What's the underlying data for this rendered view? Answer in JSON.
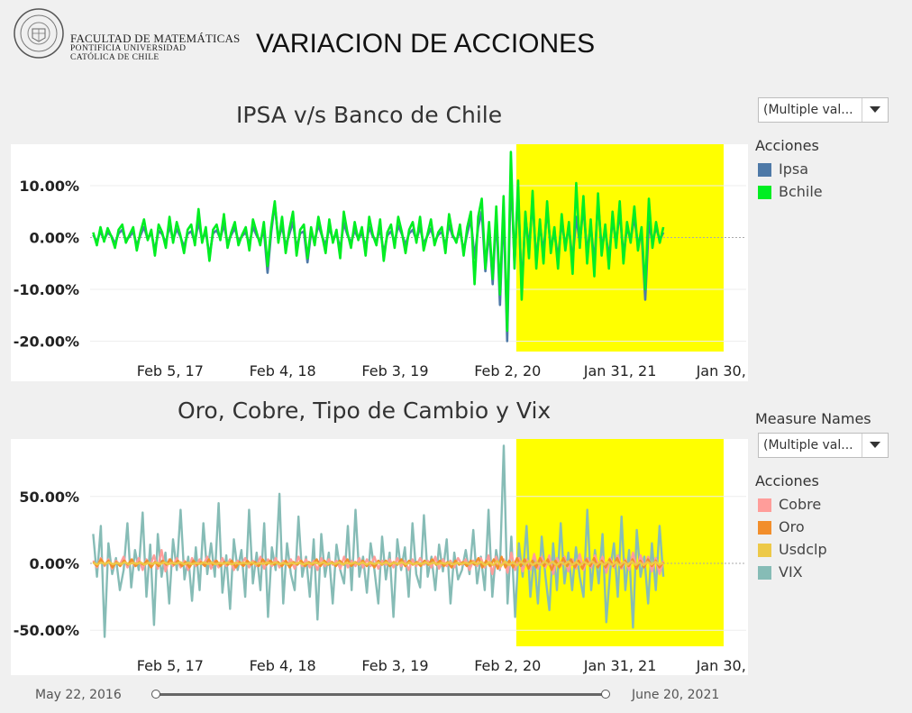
{
  "header": {
    "faculty_line1": "FACULTAD DE MATEMÁTICAS",
    "faculty_line2": "PONTIFICIA UNIVERSIDAD",
    "faculty_line3": "CATÓLICA DE CHILE",
    "page_title": "VARIACION DE ACCIONES"
  },
  "filters": {
    "acciones_filter": "(Multiple val...",
    "measure_names_filter": "(Multiple val..."
  },
  "legend1": {
    "title": "Acciones",
    "items": [
      {
        "label": "Ipsa",
        "color": "#4e79a7"
      },
      {
        "label": "Bchile",
        "color": "#00ee22"
      }
    ]
  },
  "legend2": {
    "filter_title": "Measure Names",
    "title": "Acciones",
    "items": [
      {
        "label": "Cobre",
        "color": "#ff9d9a"
      },
      {
        "label": "Oro",
        "color": "#f28e2b"
      },
      {
        "label": "Usdclp",
        "color": "#edc948"
      },
      {
        "label": "VIX",
        "color": "#86bcb6"
      }
    ]
  },
  "slider": {
    "start_label": "May 22, 2016",
    "end_label": "June 20, 2021"
  },
  "chart_data": [
    {
      "type": "line",
      "title": "IPSA v/s Banco de Chile",
      "x_ticks": [
        "Feb 5, 17",
        "Feb 4, 18",
        "Feb 3, 19",
        "Feb 2, 20",
        "Jan 31, 21",
        "Jan 30, 22"
      ],
      "y_ticks": [
        "10.00%",
        "0.00%",
        "-10.00%",
        "-20.00%"
      ],
      "ylim": [
        -22,
        18
      ],
      "xlim": [
        "2016-05-22",
        "2022-03-15"
      ],
      "highlight_range": [
        "2020-03-01",
        "2022-01-01"
      ],
      "highlight_color": "#ffff00",
      "series": [
        {
          "name": "Ipsa",
          "color": "#4e79a7",
          "x_start": "2016-06-01",
          "x_end": "2021-06-20",
          "values": [
            0.5,
            -0.8,
            1.2,
            -0.5,
            1.0,
            0.3,
            -1.2,
            0.8,
            1.5,
            -0.6,
            0.2,
            1.1,
            -1.5,
            0.4,
            2.0,
            -0.3,
            0.9,
            -2.5,
            1.3,
            0.6,
            -1.0,
            2.2,
            -0.4,
            1.6,
            0.2,
            -1.8,
            0.7,
            1.2,
            -0.9,
            3.0,
            -0.5,
            1.0,
            -3.5,
            0.8,
            1.4,
            -0.2,
            2.5,
            -1.1,
            0.5,
            1.8,
            -0.7,
            0.3,
            1.0,
            -1.3,
            2.0,
            0.4,
            -0.8,
            1.5,
            -6.8,
            0.9,
            6.5,
            -0.5,
            2.2,
            -1.6,
            0.6,
            3.0,
            -2.0,
            0.8,
            1.2,
            -4.8,
            1.0,
            -0.6,
            2.4,
            0.3,
            -1.5,
            1.9,
            -0.4,
            0.8,
            -2.2,
            2.8,
            0.5,
            -1.0,
            1.4,
            -0.3,
            0.9,
            -1.8,
            2.0,
            0.2,
            -0.7,
            1.6,
            -3.0,
            0.4,
            1.2,
            -0.9,
            2.3,
            0.6,
            -1.4,
            0.8,
            1.5,
            -0.5,
            2.0,
            -1.2,
            0.3,
            1.7,
            -0.8,
            0.5,
            1.1,
            -1.6,
            2.4,
            0.2,
            -0.6,
            1.3,
            -2.5,
            0.8,
            3.5,
            -4.0,
            2.0,
            5.0,
            -6.5,
            1.5,
            -9.0,
            4.5,
            -13.0,
            6.0,
            -20.0,
            13.0,
            -5.0,
            9.0,
            -10.0,
            4.0,
            -2.0,
            7.0,
            -4.5,
            2.5,
            -3.0,
            5.5,
            -2.0,
            1.0,
            -4.0,
            3.0,
            -1.5,
            2.0,
            -4.5,
            4.0,
            -1.0,
            6.0,
            -3.0,
            2.5,
            -5.0,
            7.0,
            -2.0,
            1.5,
            -4.0,
            3.5,
            -1.0,
            5.0,
            -3.5,
            2.0,
            -0.5,
            4.0,
            -1.5,
            1.0,
            -12.0,
            3.0,
            -1.0,
            2.0,
            -0.5,
            1.0
          ]
        },
        {
          "name": "Bchile",
          "color": "#00ee22",
          "x_start": "2016-06-01",
          "x_end": "2021-06-20",
          "values": [
            1.0,
            -1.5,
            2.0,
            -0.8,
            1.8,
            0.2,
            -2.0,
            1.5,
            2.5,
            -1.0,
            0.5,
            2.0,
            -2.5,
            1.0,
            3.5,
            -0.5,
            1.5,
            -3.5,
            2.5,
            1.0,
            -2.0,
            4.0,
            -1.0,
            3.0,
            0.5,
            -3.0,
            1.5,
            2.5,
            -1.5,
            5.5,
            -1.0,
            2.0,
            -4.5,
            1.5,
            2.5,
            -0.5,
            4.5,
            -2.0,
            1.0,
            3.0,
            -1.5,
            0.5,
            2.0,
            -2.5,
            3.5,
            1.0,
            -1.5,
            3.0,
            -5.5,
            2.0,
            7.0,
            -1.0,
            4.0,
            -3.0,
            1.5,
            5.0,
            -3.5,
            1.5,
            2.5,
            -4.0,
            2.0,
            -1.5,
            4.0,
            0.5,
            -3.0,
            3.5,
            -1.0,
            1.5,
            -4.0,
            5.0,
            1.0,
            -2.0,
            3.0,
            -0.5,
            2.0,
            -3.5,
            4.0,
            0.5,
            -1.5,
            3.5,
            -4.5,
            1.0,
            2.5,
            -2.0,
            4.0,
            1.0,
            -3.0,
            1.5,
            3.0,
            -1.0,
            4.0,
            -2.5,
            0.5,
            3.5,
            -1.5,
            1.0,
            2.0,
            -3.0,
            4.5,
            0.5,
            -1.0,
            2.5,
            -3.5,
            2.0,
            5.0,
            -9.0,
            4.0,
            7.5,
            -6.0,
            3.0,
            -8.0,
            6.0,
            -11.0,
            8.0,
            -18.0,
            16.5,
            -6.0,
            11.0,
            -12.0,
            5.0,
            -4.0,
            9.0,
            -6.0,
            3.5,
            -5.0,
            7.0,
            -3.0,
            2.0,
            -6.0,
            4.5,
            -2.5,
            3.0,
            -7.0,
            10.5,
            -2.0,
            8.0,
            -5.0,
            3.5,
            -7.5,
            8.5,
            -3.5,
            2.5,
            -6.0,
            5.0,
            -2.0,
            7.0,
            -5.0,
            3.0,
            -1.0,
            6.0,
            -2.5,
            2.0,
            -10.0,
            7.5,
            -2.0,
            3.0,
            -1.0,
            2.0
          ]
        }
      ]
    },
    {
      "type": "line",
      "title": "Oro, Cobre, Tipo de Cambio y Vix",
      "x_ticks": [
        "Feb 5, 17",
        "Feb 4, 18",
        "Feb 3, 19",
        "Feb 2, 20",
        "Jan 31, 21",
        "Jan 30, 22"
      ],
      "y_ticks": [
        "50.00%",
        "0.00%",
        "-50.00%"
      ],
      "ylim": [
        -62,
        93
      ],
      "xlim": [
        "2016-05-22",
        "2022-03-15"
      ],
      "highlight_range": [
        "2020-03-01",
        "2022-01-01"
      ],
      "highlight_color": "#ffff00",
      "series": [
        {
          "name": "VIX",
          "color": "#86bcb6",
          "x_start": "2016-06-01",
          "x_end": "2021-06-20",
          "values": [
            22,
            -10,
            28,
            -55,
            15,
            -8,
            4,
            -20,
            -5,
            30,
            -18,
            10,
            -5,
            38,
            -25,
            14,
            -46,
            22,
            -10,
            8,
            -30,
            18,
            -5,
            40,
            -12,
            5,
            -28,
            12,
            -20,
            30,
            -8,
            15,
            -10,
            45,
            -22,
            6,
            -34,
            18,
            -5,
            10,
            -25,
            40,
            -15,
            8,
            -20,
            30,
            -40,
            12,
            -5,
            52,
            -30,
            15,
            -8,
            -20,
            35,
            -10,
            5,
            -25,
            18,
            -42,
            22,
            -10,
            8,
            -30,
            14,
            -5,
            -15,
            28,
            -20,
            40,
            -10,
            5,
            -22,
            15,
            -5,
            -30,
            20,
            -12,
            8,
            -40,
            18,
            -5,
            12,
            -25,
            30,
            -8,
            -18,
            36,
            -10,
            5,
            -20,
            14,
            -6,
            18,
            -30,
            8,
            -12,
            -5,
            10,
            -8,
            25,
            -15,
            5,
            -20,
            40,
            -25,
            10,
            -5,
            88,
            -30,
            20,
            -40,
            15,
            -10,
            28,
            -25,
            5,
            -30,
            20,
            -10,
            -35,
            15,
            -20,
            30,
            -15,
            8,
            -20,
            12,
            -10,
            -25,
            40,
            -20,
            10,
            -15,
            22,
            -44,
            -5,
            15,
            -25,
            35,
            -20,
            10,
            -48,
            25,
            -10,
            5,
            -30,
            15,
            -20,
            28,
            -10
          ]
        },
        {
          "name": "Cobre",
          "color": "#ff9d9a",
          "x_start": "2016-06-01",
          "x_end": "2021-06-20",
          "values": [
            2,
            -3,
            4,
            -2,
            3,
            -4,
            2,
            -1,
            5,
            -3,
            2,
            -2,
            4,
            -5,
            3,
            -2,
            6,
            -4,
            10,
            -6,
            3,
            -2,
            4,
            -3,
            2,
            -5,
            4,
            -2,
            3,
            -1,
            5,
            -4,
            2,
            -3,
            4,
            -2,
            3,
            -5,
            2,
            -1,
            4,
            -3,
            2,
            -2,
            5,
            -4,
            3,
            -2,
            4,
            -3,
            2,
            -1,
            3,
            -4,
            5,
            -2,
            3,
            -3,
            2,
            -5,
            4,
            -2,
            3,
            -1,
            2,
            -4,
            5,
            -3,
            2,
            -2,
            4,
            -3,
            3,
            -2,
            5,
            -4,
            2,
            -1,
            3,
            -3,
            4,
            -2,
            2,
            -5,
            3,
            -2,
            4,
            -1,
            2,
            -3,
            5,
            -4,
            3,
            -2,
            2,
            -3,
            4,
            -1,
            3,
            -5,
            2,
            -2,
            4,
            -3,
            6,
            -8,
            5,
            -4,
            3,
            -7,
            8,
            -5,
            4,
            -6,
            3,
            -5,
            7,
            -4,
            5,
            -3,
            6,
            -8,
            4,
            -2,
            5,
            -6,
            3,
            -4,
            7,
            -5,
            4,
            -3,
            6,
            -2,
            5,
            -7,
            4,
            -3,
            6,
            -4,
            3,
            -5,
            8,
            -4,
            6,
            -3,
            5,
            -6,
            4,
            -8,
            2
          ]
        },
        {
          "name": "Oro",
          "color": "#f28e2b",
          "x_start": "2016-06-01",
          "x_end": "2021-06-20",
          "values": [
            1,
            -2,
            3,
            -1,
            2,
            -3,
            1,
            -2,
            2,
            -1,
            3,
            -2,
            1,
            -1,
            2,
            -3,
            1,
            -2,
            2,
            -1,
            3,
            -1,
            2,
            -2,
            1,
            -3,
            2,
            -1,
            1,
            -2,
            3,
            -1,
            2,
            -2,
            1,
            -1,
            2,
            -3,
            1,
            -2,
            2,
            -1,
            1,
            -2,
            3,
            -1,
            2,
            -1,
            1,
            -2,
            2,
            -3,
            1,
            -1,
            2,
            -2,
            1,
            -1,
            3,
            -2,
            2,
            -1,
            1,
            -2,
            2,
            -1,
            3,
            -2,
            1,
            -1,
            2,
            -2,
            1,
            -3,
            2,
            -1,
            2,
            -2,
            1,
            -1,
            3,
            -2,
            2,
            -1,
            1,
            -2,
            2,
            -1,
            3,
            -1,
            2,
            -2,
            1,
            -3,
            2,
            -1,
            1,
            -2,
            2,
            -1,
            4,
            -3,
            2,
            -2,
            3,
            -4,
            5,
            -3,
            2,
            -3,
            4,
            -2,
            3,
            -4,
            2,
            -3,
            4,
            -2,
            3,
            -5,
            2,
            -3,
            4,
            -2,
            3,
            -3,
            2,
            -4,
            3,
            -2,
            4,
            -3,
            2,
            -3,
            3,
            -2,
            4,
            -3,
            2,
            -2,
            3,
            -4,
            2,
            -3,
            3,
            -2,
            2,
            -3,
            1
          ]
        },
        {
          "name": "Usdclp",
          "color": "#edc948",
          "x_start": "2016-06-01",
          "x_end": "2021-06-20",
          "values": [
            0.5,
            -0.8,
            0.6,
            -0.4,
            0.9,
            -0.6,
            0.3,
            -0.5,
            0.8,
            -0.7,
            0.4,
            -0.3,
            0.7,
            -0.9,
            0.5,
            -0.4,
            0.6,
            -0.5,
            0.8,
            -0.6,
            0.4,
            -0.3,
            0.9,
            -0.7,
            0.5,
            -0.6,
            0.3,
            -0.4,
            0.8,
            -0.5,
            0.6,
            -0.7,
            0.4,
            -0.3,
            0.7,
            -0.8,
            0.5,
            -0.4,
            0.6,
            -0.5,
            0.9,
            -0.6,
            0.3,
            -0.4,
            0.7,
            -0.5,
            0.8,
            -0.6,
            0.4,
            -0.7,
            0.5,
            -0.3,
            0.6,
            -0.8,
            0.4,
            -0.5,
            0.7,
            -0.4,
            0.9,
            -0.6,
            0.3,
            -0.5,
            0.8,
            -0.7,
            0.4,
            -0.3,
            0.6,
            -0.5,
            0.7,
            -0.8,
            0.5,
            -0.4,
            0.6,
            -0.5,
            0.8,
            -0.6,
            0.4,
            -0.3,
            0.9,
            -0.7,
            0.5,
            -0.6,
            0.3,
            -0.4,
            0.8,
            -0.5,
            0.6,
            -0.7,
            0.4,
            -0.3,
            0.7,
            -0.8,
            0.5,
            -0.4,
            0.6,
            -0.5,
            0.9,
            -0.6,
            1.2,
            -1.5,
            1.0,
            -1.3,
            1.8,
            -2.0,
            1.5,
            -1.2,
            1.0,
            -1.6,
            1.4,
            -1.1,
            1.7,
            -1.3,
            0.9,
            -1.2,
            1.5,
            -1.0,
            1.3,
            -1.6,
            1.1,
            -0.9,
            1.4,
            -1.2,
            1.0,
            -1.5,
            1.2,
            -0.8,
            1.6,
            -1.3,
            1.1,
            -1.0,
            1.3,
            -1.2,
            0.9,
            -1.4,
            1.2,
            -1.0,
            1.5,
            -1.1,
            0.8,
            -1.3,
            1.0,
            -0.9,
            1.2,
            -1.0,
            0.5
          ]
        }
      ]
    }
  ]
}
